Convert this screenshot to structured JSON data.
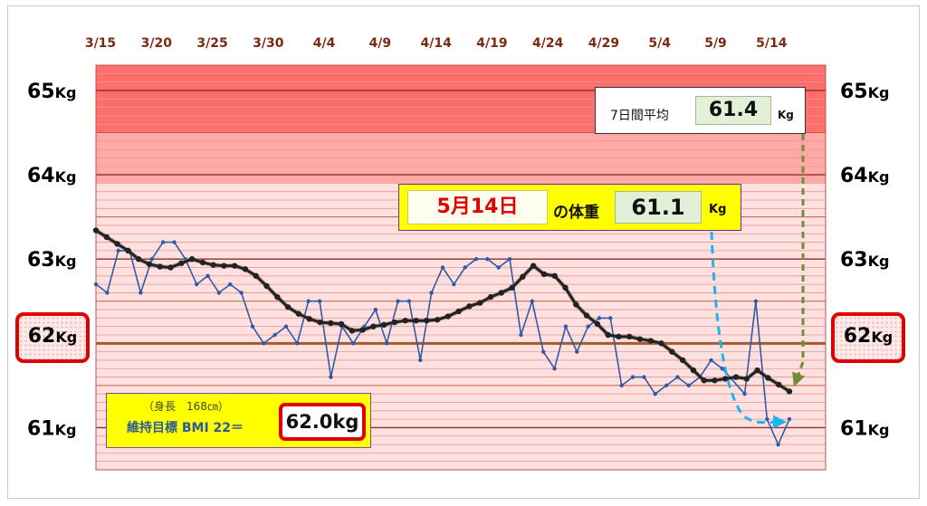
{
  "chart_data": {
    "type": "line",
    "x_ticks": [
      "3/15",
      "3/20",
      "3/25",
      "3/30",
      "4/4",
      "4/9",
      "4/14",
      "4/19",
      "4/24",
      "4/29",
      "5/4",
      "5/9",
      "5/14"
    ],
    "y_ticks": [
      {
        "value": 65,
        "num": "65",
        "unit": "Kg"
      },
      {
        "value": 64,
        "num": "64",
        "unit": "Kg"
      },
      {
        "value": 63,
        "num": "63",
        "unit": "Kg"
      },
      {
        "value": 62,
        "num": "62",
        "unit": "Kg"
      },
      {
        "value": 61,
        "num": "61",
        "unit": "Kg"
      }
    ],
    "ylim": [
      60.5,
      65.3
    ],
    "x_range": [
      "3/15",
      "5/14"
    ],
    "zones": [
      {
        "from": 64.5,
        "to": 65.3,
        "color": "#ff6d6d"
      },
      {
        "from": 63.9,
        "to": 64.5,
        "color": "#ffa8a8"
      },
      {
        "from": 60.5,
        "to": 63.9,
        "color": "#ffe0e0"
      }
    ],
    "grid": true,
    "series": [
      {
        "color": "#2f5aa8",
        "marker": "small-dot",
        "values": [
          62.7,
          62.6,
          63.1,
          63.1,
          62.6,
          63.0,
          63.2,
          63.2,
          63.0,
          62.7,
          62.8,
          62.6,
          62.7,
          62.6,
          62.2,
          62.0,
          62.1,
          62.2,
          62.0,
          62.5,
          62.5,
          61.6,
          62.2,
          62.0,
          62.2,
          62.4,
          62.0,
          62.5,
          62.5,
          61.8,
          62.6,
          62.9,
          62.7,
          62.9,
          63.0,
          63.0,
          62.9,
          63.0,
          62.1,
          62.5,
          61.9,
          61.7,
          62.2,
          61.9,
          62.2,
          62.3,
          62.3,
          61.5,
          61.6,
          61.6,
          61.4,
          61.5,
          61.6,
          61.5,
          61.6,
          61.8,
          61.7,
          61.3,
          61.4,
          62.5,
          61.1,
          60.8,
          61.1
        ],
        "missing_indices": [
          57
        ]
      },
      {
        "color": "#222222",
        "marker": "large-dot",
        "values": [
          63.34,
          63.26,
          63.18,
          63.1,
          63.0,
          62.94,
          62.91,
          62.9,
          62.95,
          63.0,
          62.96,
          62.93,
          62.92,
          62.92,
          62.88,
          62.8,
          62.68,
          62.55,
          62.43,
          62.35,
          62.29,
          62.25,
          62.24,
          62.23,
          62.15,
          62.16,
          62.2,
          62.22,
          62.25,
          62.27,
          62.27,
          62.27,
          62.28,
          62.32,
          62.38,
          62.44,
          62.48,
          62.55,
          62.6,
          62.66,
          62.79,
          62.92,
          62.82,
          62.8,
          62.66,
          62.46,
          62.33,
          62.23,
          62.1,
          62.08,
          62.08,
          62.05,
          62.03,
          62.0,
          61.9,
          61.8,
          61.68,
          61.56,
          61.56,
          61.58,
          61.6,
          61.58,
          61.68,
          61.59,
          61.51,
          61.43
        ]
      }
    ]
  },
  "annotations": {
    "avg_label": "7日間平均",
    "avg_value": "61.4",
    "avg_unit": "Kg",
    "today_date": "5月14日",
    "today_label": "の体重",
    "today_value": "61.1",
    "today_unit": "Kg",
    "height_label": "（身長　168㎝）",
    "goal_label": "維持目標 BMI 22＝",
    "goal_value": "62.0kg",
    "goal_num": "62",
    "goal_unit": "Kg"
  },
  "colors": {
    "raw_line": "#2f5aa8",
    "avg_line": "#222222",
    "tick_text": "#7a2a10",
    "highlight": "#e00000",
    "callout_yellow": "#ffff00",
    "arrow_blue": "#1fb4f0",
    "arrow_green": "#6e8c3a"
  }
}
